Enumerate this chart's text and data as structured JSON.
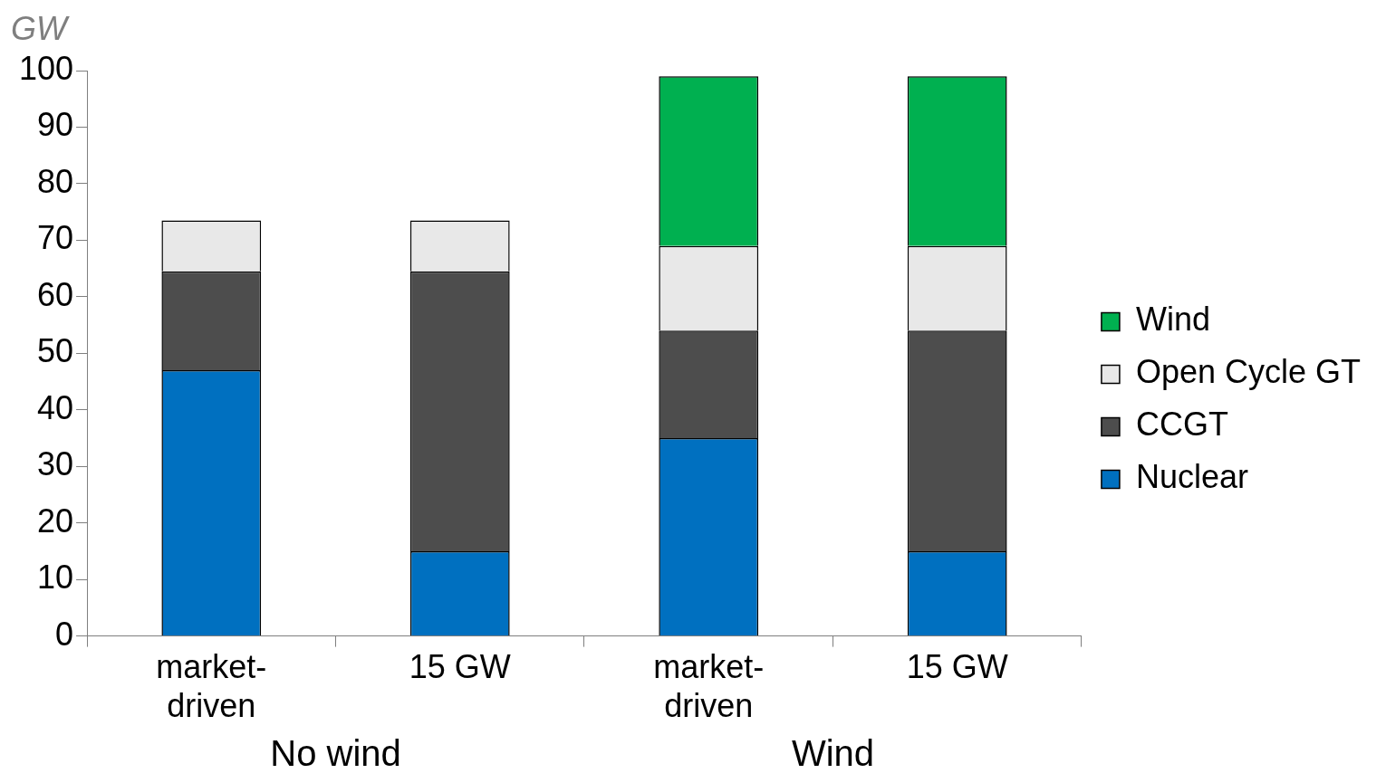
{
  "chart_data": {
    "type": "bar",
    "stacked": true,
    "ylabel": "GW",
    "categories": [
      "market-driven",
      "15 GW",
      "market-driven",
      "15 GW"
    ],
    "series": [
      {
        "name": "Nuclear",
        "color": "#0070c0",
        "values": [
          47,
          15,
          35,
          15
        ]
      },
      {
        "name": "CCGT",
        "color": "#4d4d4d",
        "values": [
          17.5,
          49.5,
          19,
          39
        ]
      },
      {
        "name": "Open Cycle GT",
        "color": "#e8e8e8",
        "values": [
          9,
          9,
          15,
          15
        ]
      },
      {
        "name": "Wind",
        "color": "#00b050",
        "values": [
          null,
          null,
          30,
          30
        ]
      }
    ],
    "ylim": [
      0,
      100
    ],
    "yticks": [
      0,
      10,
      20,
      30,
      40,
      50,
      60,
      70,
      80,
      90,
      100
    ],
    "grid": false,
    "legend": "right",
    "annotations": [
      "No wind",
      "Wind"
    ]
  }
}
